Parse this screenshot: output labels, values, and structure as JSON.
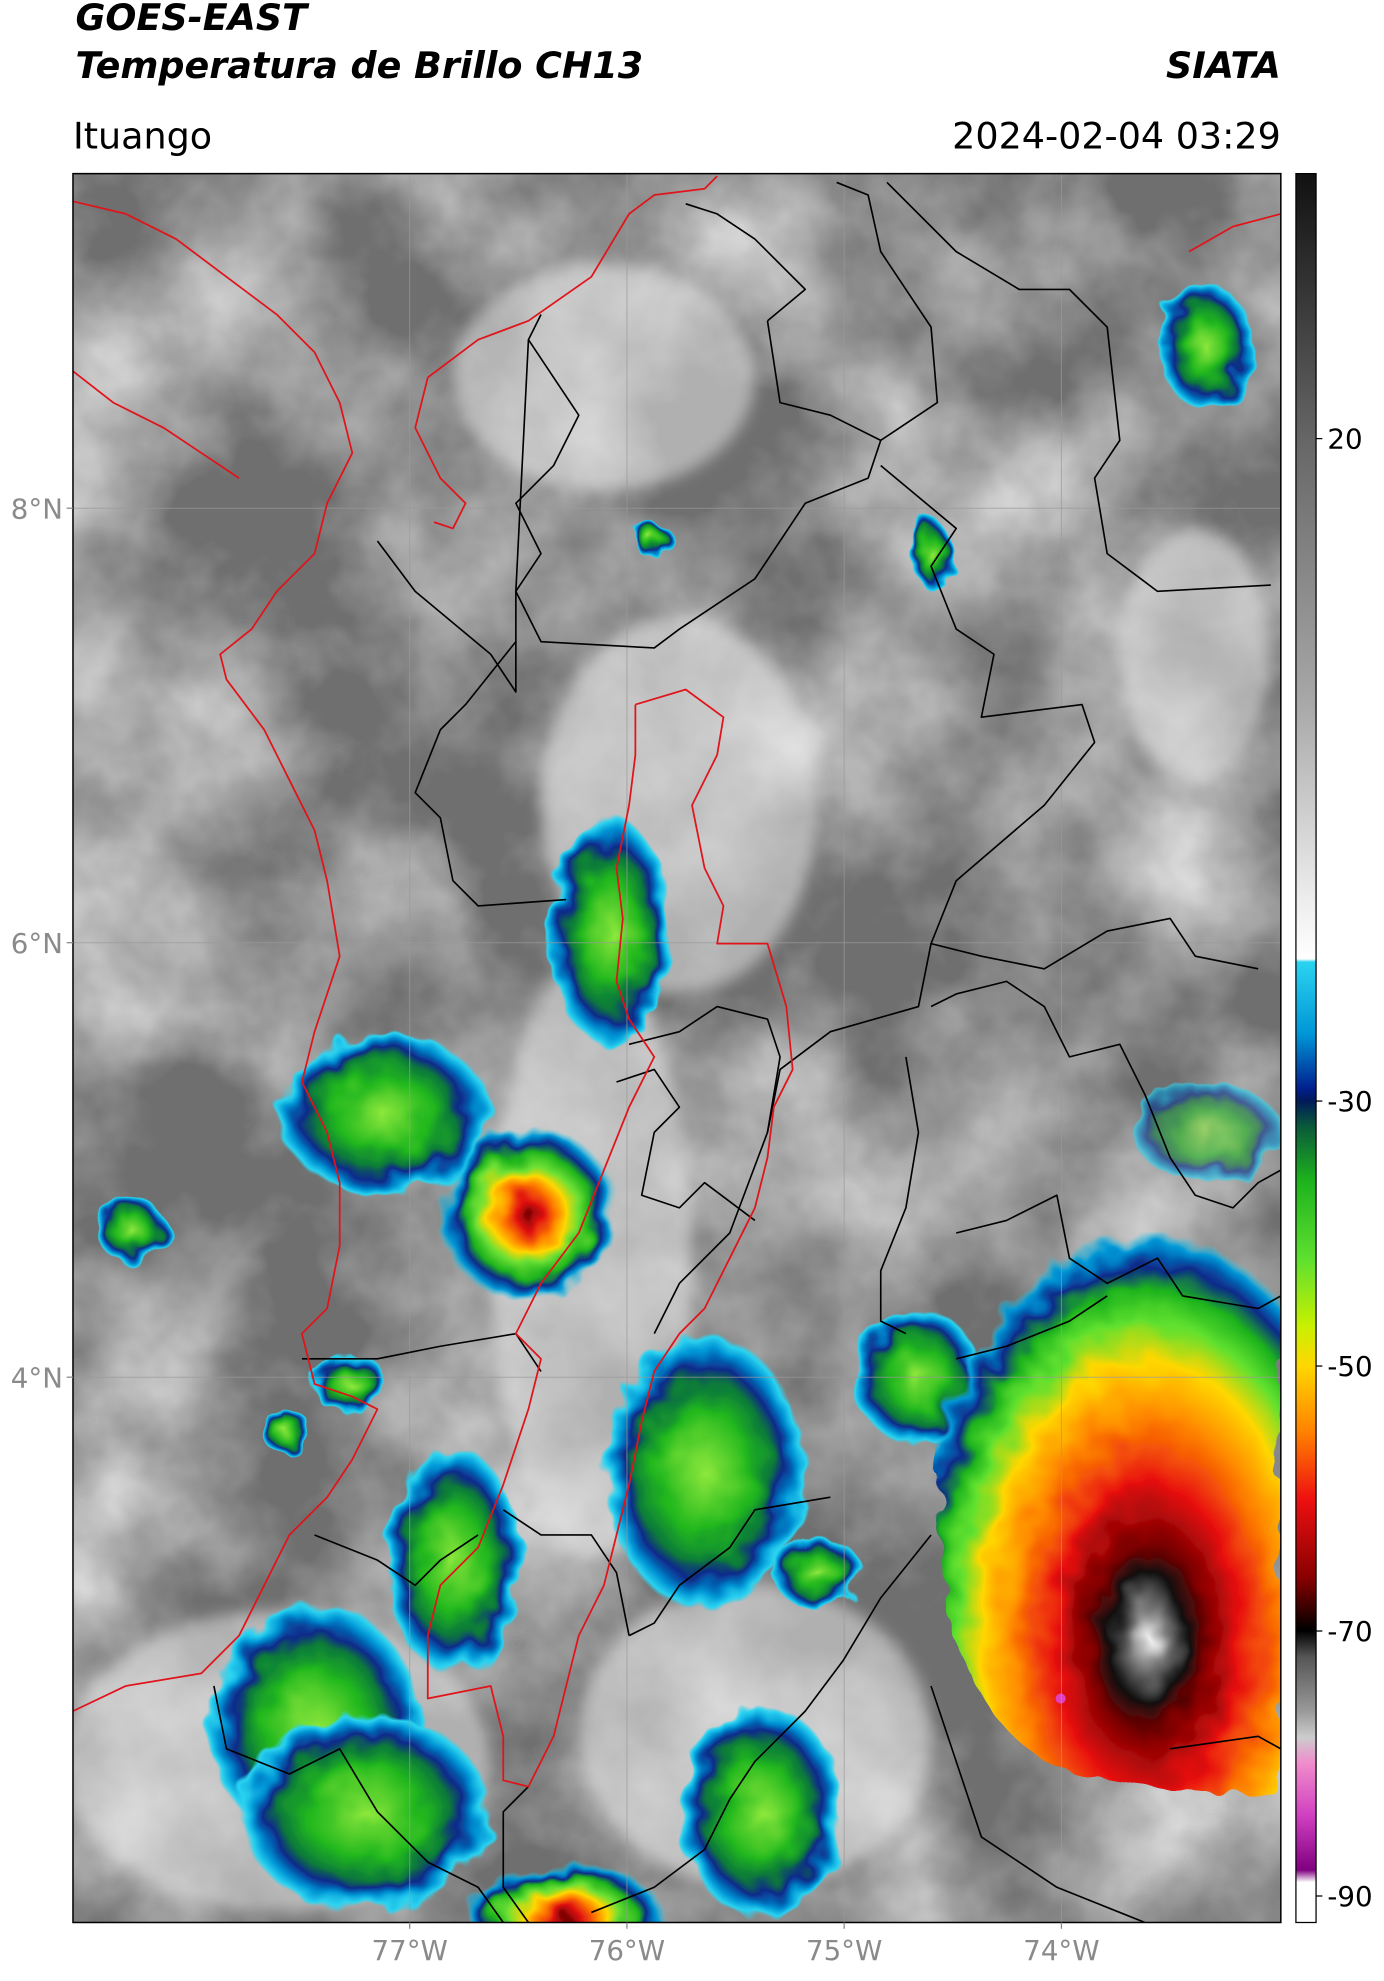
{
  "header": {
    "title": "GOES-EAST",
    "subtitle": "Temperatura de Brillo CH13",
    "source": "SIATA",
    "location": "Ituango",
    "datetime": "2024-02-04 03:29"
  },
  "map": {
    "lonlim": [
      -78.55,
      -72.99
    ],
    "latlim": [
      1.49,
      9.54
    ],
    "lon_ticks": [
      {
        "value": -77,
        "label": "77°W"
      },
      {
        "value": -76,
        "label": "76°W"
      },
      {
        "value": -75,
        "label": "75°W"
      },
      {
        "value": -74,
        "label": "74°W"
      }
    ],
    "lat_ticks": [
      {
        "value": 8,
        "label": "8°N"
      },
      {
        "value": 6,
        "label": "6°N"
      },
      {
        "value": 4,
        "label": "4°N"
      }
    ]
  },
  "colorbar": {
    "lim": [
      -92,
      40
    ],
    "ticks": [
      20,
      -30,
      -50,
      -70,
      -90
    ]
  }
}
